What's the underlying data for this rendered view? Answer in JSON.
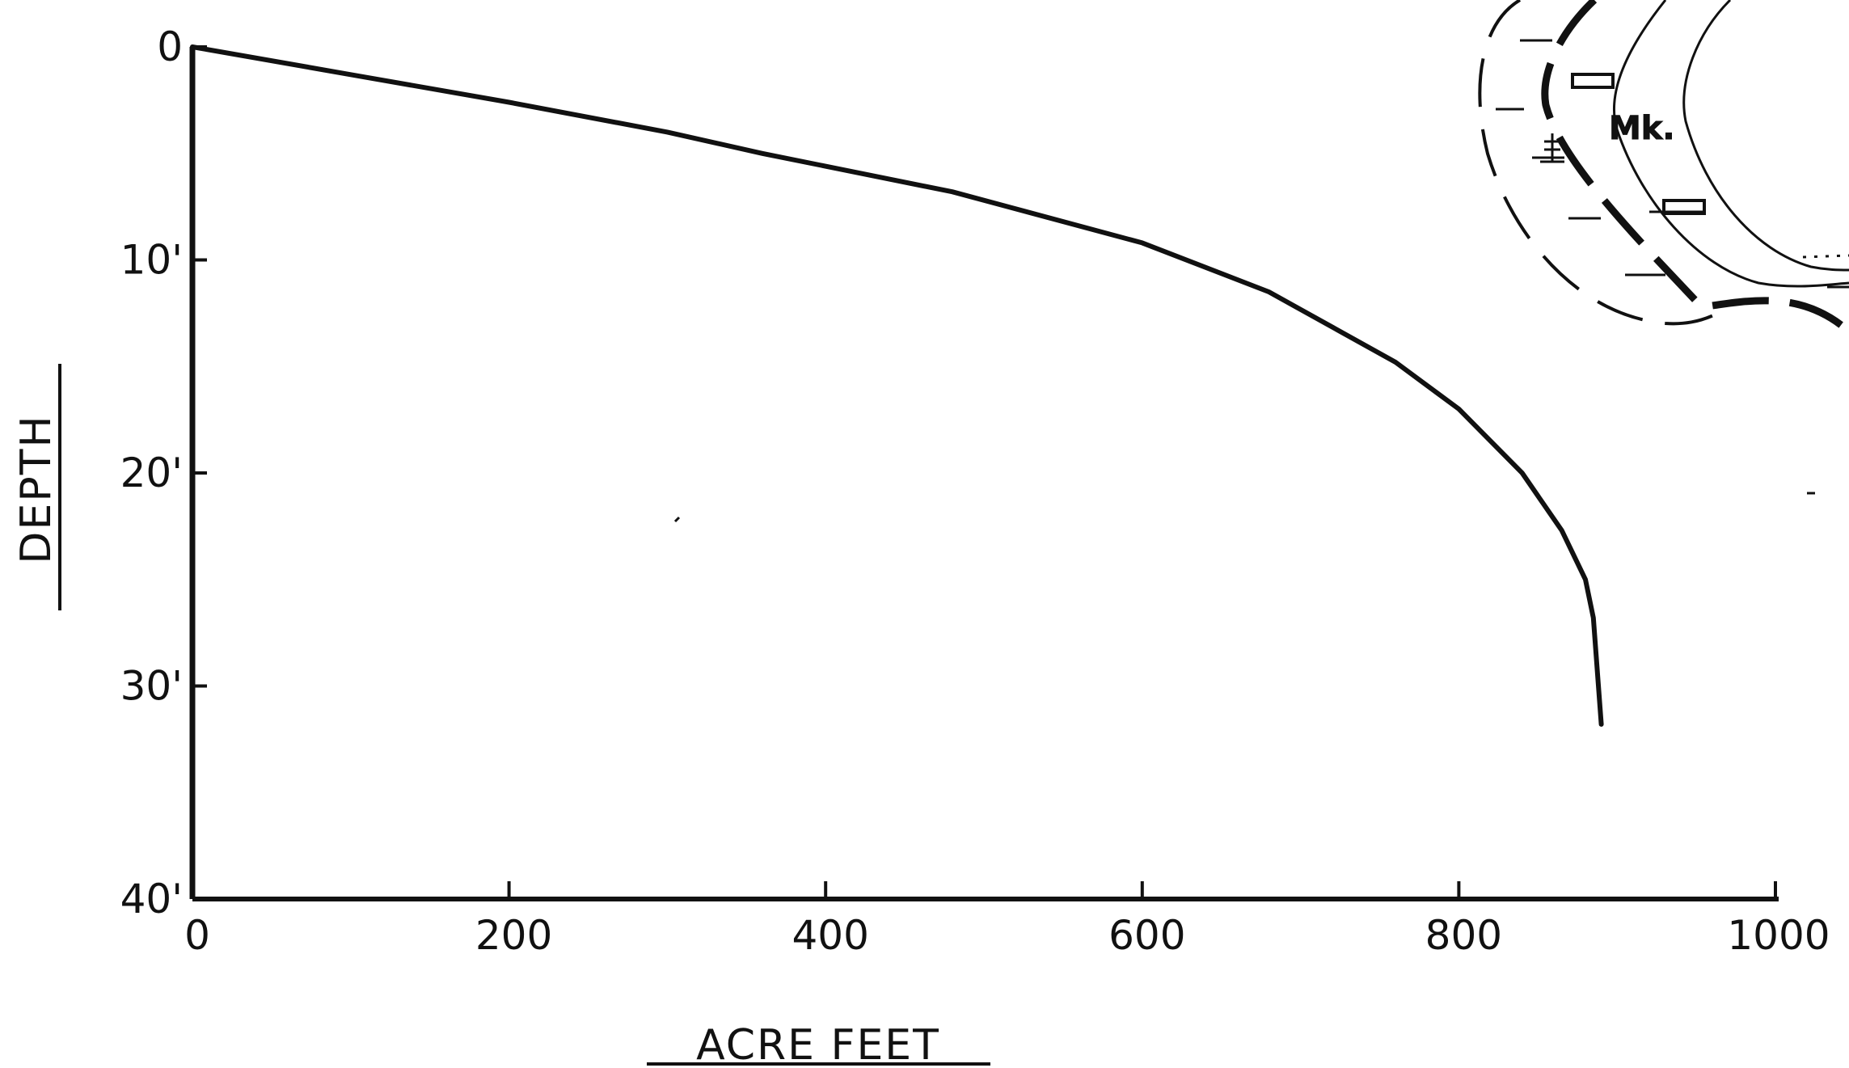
{
  "chart_data": {
    "type": "line",
    "title": "",
    "xlabel": "ACRE FEET",
    "ylabel": "DEPTH",
    "x_ticks": [
      "0",
      "200",
      "400",
      "600",
      "800",
      "1000"
    ],
    "y_ticks": [
      "0",
      "10'",
      "20'",
      "30'",
      "40'"
    ],
    "xlim": [
      0,
      1000
    ],
    "ylim": [
      0,
      40
    ],
    "y_inverted": true,
    "grid": false,
    "series": [
      {
        "points": [
          {
            "x": 0,
            "y": 0
          },
          {
            "x": 100,
            "y": 1.3
          },
          {
            "x": 200,
            "y": 2.6
          },
          {
            "x": 300,
            "y": 4.0
          },
          {
            "x": 360,
            "y": 5.0
          },
          {
            "x": 480,
            "y": 6.8
          },
          {
            "x": 600,
            "y": 9.2
          },
          {
            "x": 680,
            "y": 11.5
          },
          {
            "x": 760,
            "y": 14.8
          },
          {
            "x": 800,
            "y": 17.0
          },
          {
            "x": 840,
            "y": 20.0
          },
          {
            "x": 865,
            "y": 22.7
          },
          {
            "x": 880,
            "y": 25.0
          },
          {
            "x": 885,
            "y": 26.8
          },
          {
            "x": 890,
            "y": 31.8
          }
        ]
      }
    ]
  },
  "inset_map": {
    "label": "Mk."
  }
}
